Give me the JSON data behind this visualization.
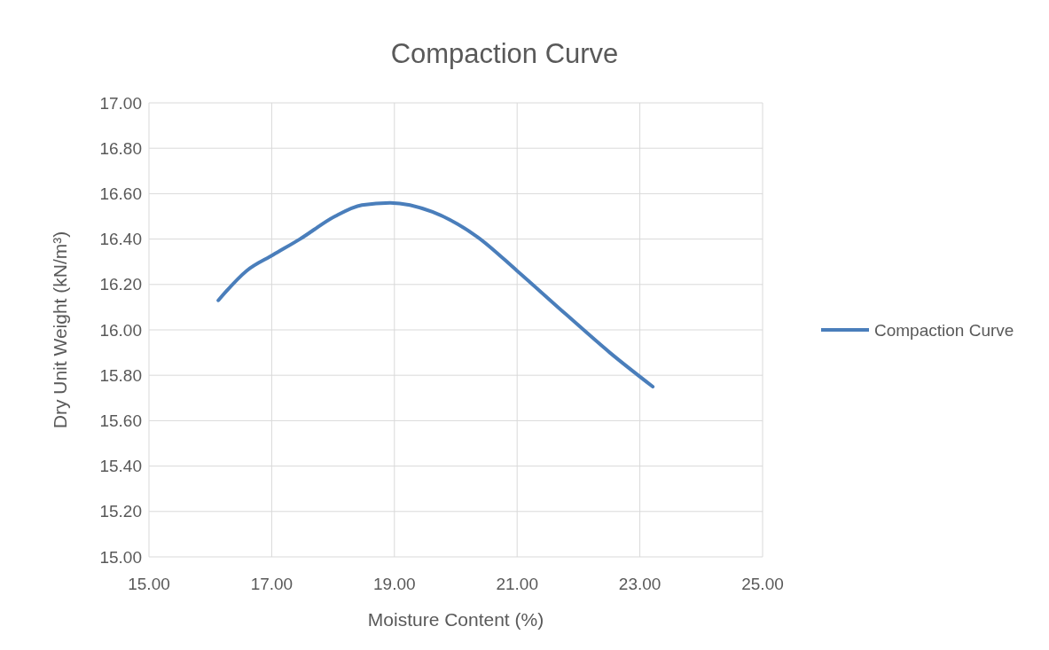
{
  "chart_data": {
    "type": "line",
    "title": "Compaction Curve",
    "xlabel": "Moisture Content (%)",
    "ylabel": "Dry Unit Weight (kN/m³)",
    "xlim": [
      15,
      25
    ],
    "xticks": [
      {
        "value": 15,
        "label": "15.00"
      },
      {
        "value": 17,
        "label": "17.00"
      },
      {
        "value": 19,
        "label": "19.00"
      },
      {
        "value": 21,
        "label": "21.00"
      },
      {
        "value": 23,
        "label": "23.00"
      },
      {
        "value": 25,
        "label": "25.00"
      }
    ],
    "ylim": [
      15,
      17
    ],
    "yticks": [
      {
        "value": 15,
        "label": "15.00"
      },
      {
        "value": 15.2,
        "label": "15.20"
      },
      {
        "value": 15.4,
        "label": "15.40"
      },
      {
        "value": 15.6,
        "label": "15.60"
      },
      {
        "value": 15.8,
        "label": "15.80"
      },
      {
        "value": 16,
        "label": "16.00"
      },
      {
        "value": 16.2,
        "label": "16.20"
      },
      {
        "value": 16.4,
        "label": "16.40"
      },
      {
        "value": 16.6,
        "label": "16.60"
      },
      {
        "value": 16.8,
        "label": "16.80"
      },
      {
        "value": 17,
        "label": "17.00"
      }
    ],
    "grid": true,
    "legend": "right",
    "marker": "none",
    "line_style": "solid",
    "series": [
      {
        "name": "Compaction Curve",
        "color": "#4a7ebb",
        "x": [
          16.13,
          16.59,
          17.02,
          17.46,
          18.03,
          18.47,
          18.93,
          19.62,
          20.35,
          21.0,
          21.79,
          22.51,
          23.21
        ],
        "values": [
          16.13,
          16.26,
          16.33,
          16.4,
          16.5,
          16.55,
          16.56,
          16.52,
          16.41,
          16.26,
          16.07,
          15.9,
          15.75
        ]
      }
    ]
  }
}
